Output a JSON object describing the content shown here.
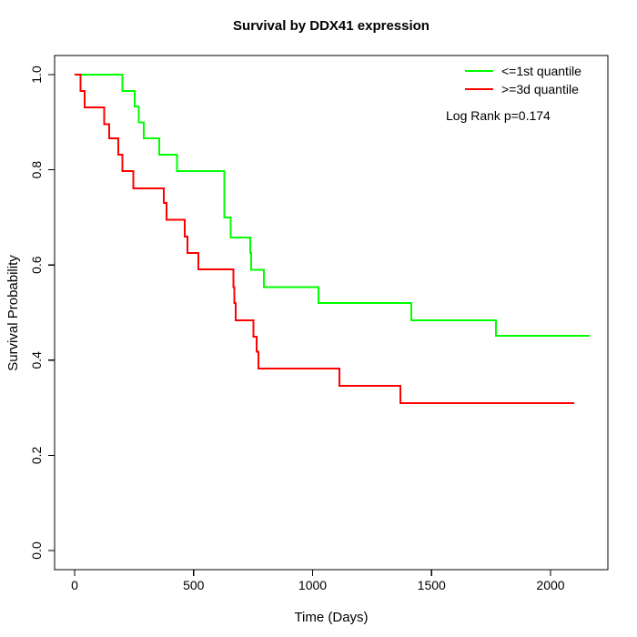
{
  "chart_data": {
    "type": "line",
    "subtype": "kaplan-meier-step",
    "title": "Survival by DDX41 expression",
    "xlabel": "Time (Days)",
    "ylabel": "Survival Probability",
    "xlim": [
      -87,
      2252
    ],
    "ylim": [
      -0.04,
      1.04
    ],
    "x_ticks": [
      0,
      500,
      1000,
      1500,
      2000
    ],
    "y_tick_labels": [
      "0.0",
      "0.2",
      "0.4",
      "0.6",
      "0.8",
      "1.0"
    ],
    "grid": false,
    "legend_position": "top-right",
    "annotation": "Log Rank p=0.174",
    "axis_color": "#000000",
    "series": [
      {
        "name": "<=1st quantile",
        "color": "#00ff00",
        "end_time": 2165,
        "points": [
          [
            0,
            1.0
          ],
          [
            200,
            0.966
          ],
          [
            252,
            0.933
          ],
          [
            270,
            0.9
          ],
          [
            291,
            0.866
          ],
          [
            356,
            0.832
          ],
          [
            430,
            0.797
          ],
          [
            630,
            0.7
          ],
          [
            655,
            0.658
          ],
          [
            738,
            0.625
          ],
          [
            742,
            0.59
          ],
          [
            795,
            0.554
          ],
          [
            1025,
            0.52
          ],
          [
            1414,
            0.484
          ],
          [
            1771,
            0.451
          ]
        ]
      },
      {
        "name": ">=3d quantile",
        "color": "#ff0000",
        "end_time": 2100,
        "points": [
          [
            0,
            1.0
          ],
          [
            25,
            0.966
          ],
          [
            42,
            0.931
          ],
          [
            125,
            0.896
          ],
          [
            145,
            0.866
          ],
          [
            184,
            0.832
          ],
          [
            200,
            0.797
          ],
          [
            247,
            0.761
          ],
          [
            375,
            0.73
          ],
          [
            386,
            0.695
          ],
          [
            462,
            0.66
          ],
          [
            474,
            0.625
          ],
          [
            520,
            0.591
          ],
          [
            668,
            0.554
          ],
          [
            672,
            0.52
          ],
          [
            676,
            0.484
          ],
          [
            751,
            0.449
          ],
          [
            764,
            0.418
          ],
          [
            772,
            0.382
          ],
          [
            1112,
            0.346
          ],
          [
            1369,
            0.31
          ]
        ]
      }
    ]
  }
}
